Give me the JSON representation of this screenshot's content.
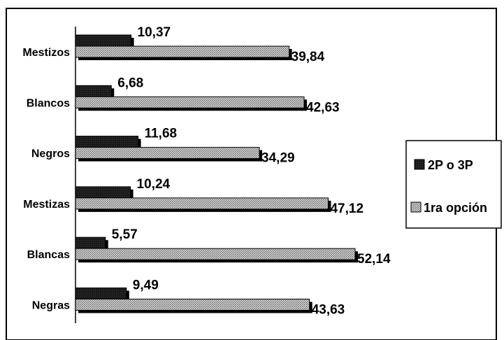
{
  "chart_data": {
    "type": "bar",
    "orientation": "horizontal",
    "categories": [
      "Mestizos",
      "Blancos",
      "Negros",
      "Mestizas",
      "Blancas",
      "Negras"
    ],
    "series": [
      {
        "name": "2P o 3P",
        "values": [
          10.37,
          6.68,
          11.68,
          10.24,
          5.57,
          9.49
        ],
        "value_labels": [
          "10,37",
          "6,68",
          "11,68",
          "10,24",
          "5,57",
          "9,49"
        ],
        "pattern": "solid-dark"
      },
      {
        "name": "1ra opción",
        "values": [
          39.84,
          42.63,
          34.29,
          47.12,
          52.14,
          43.63
        ],
        "value_labels": [
          "39,84",
          "42,63",
          "34,29",
          "47,12",
          "52,14",
          "43,63"
        ],
        "pattern": "dotted-gray"
      }
    ],
    "title": "",
    "xlabel": "",
    "ylabel": "",
    "xlim": [
      0,
      52.14
    ],
    "grid": false,
    "legend_position": "right",
    "colors": {
      "dark": "#1a1a1a",
      "hatch": "#a8a8a8",
      "shadow": "#000000"
    }
  }
}
